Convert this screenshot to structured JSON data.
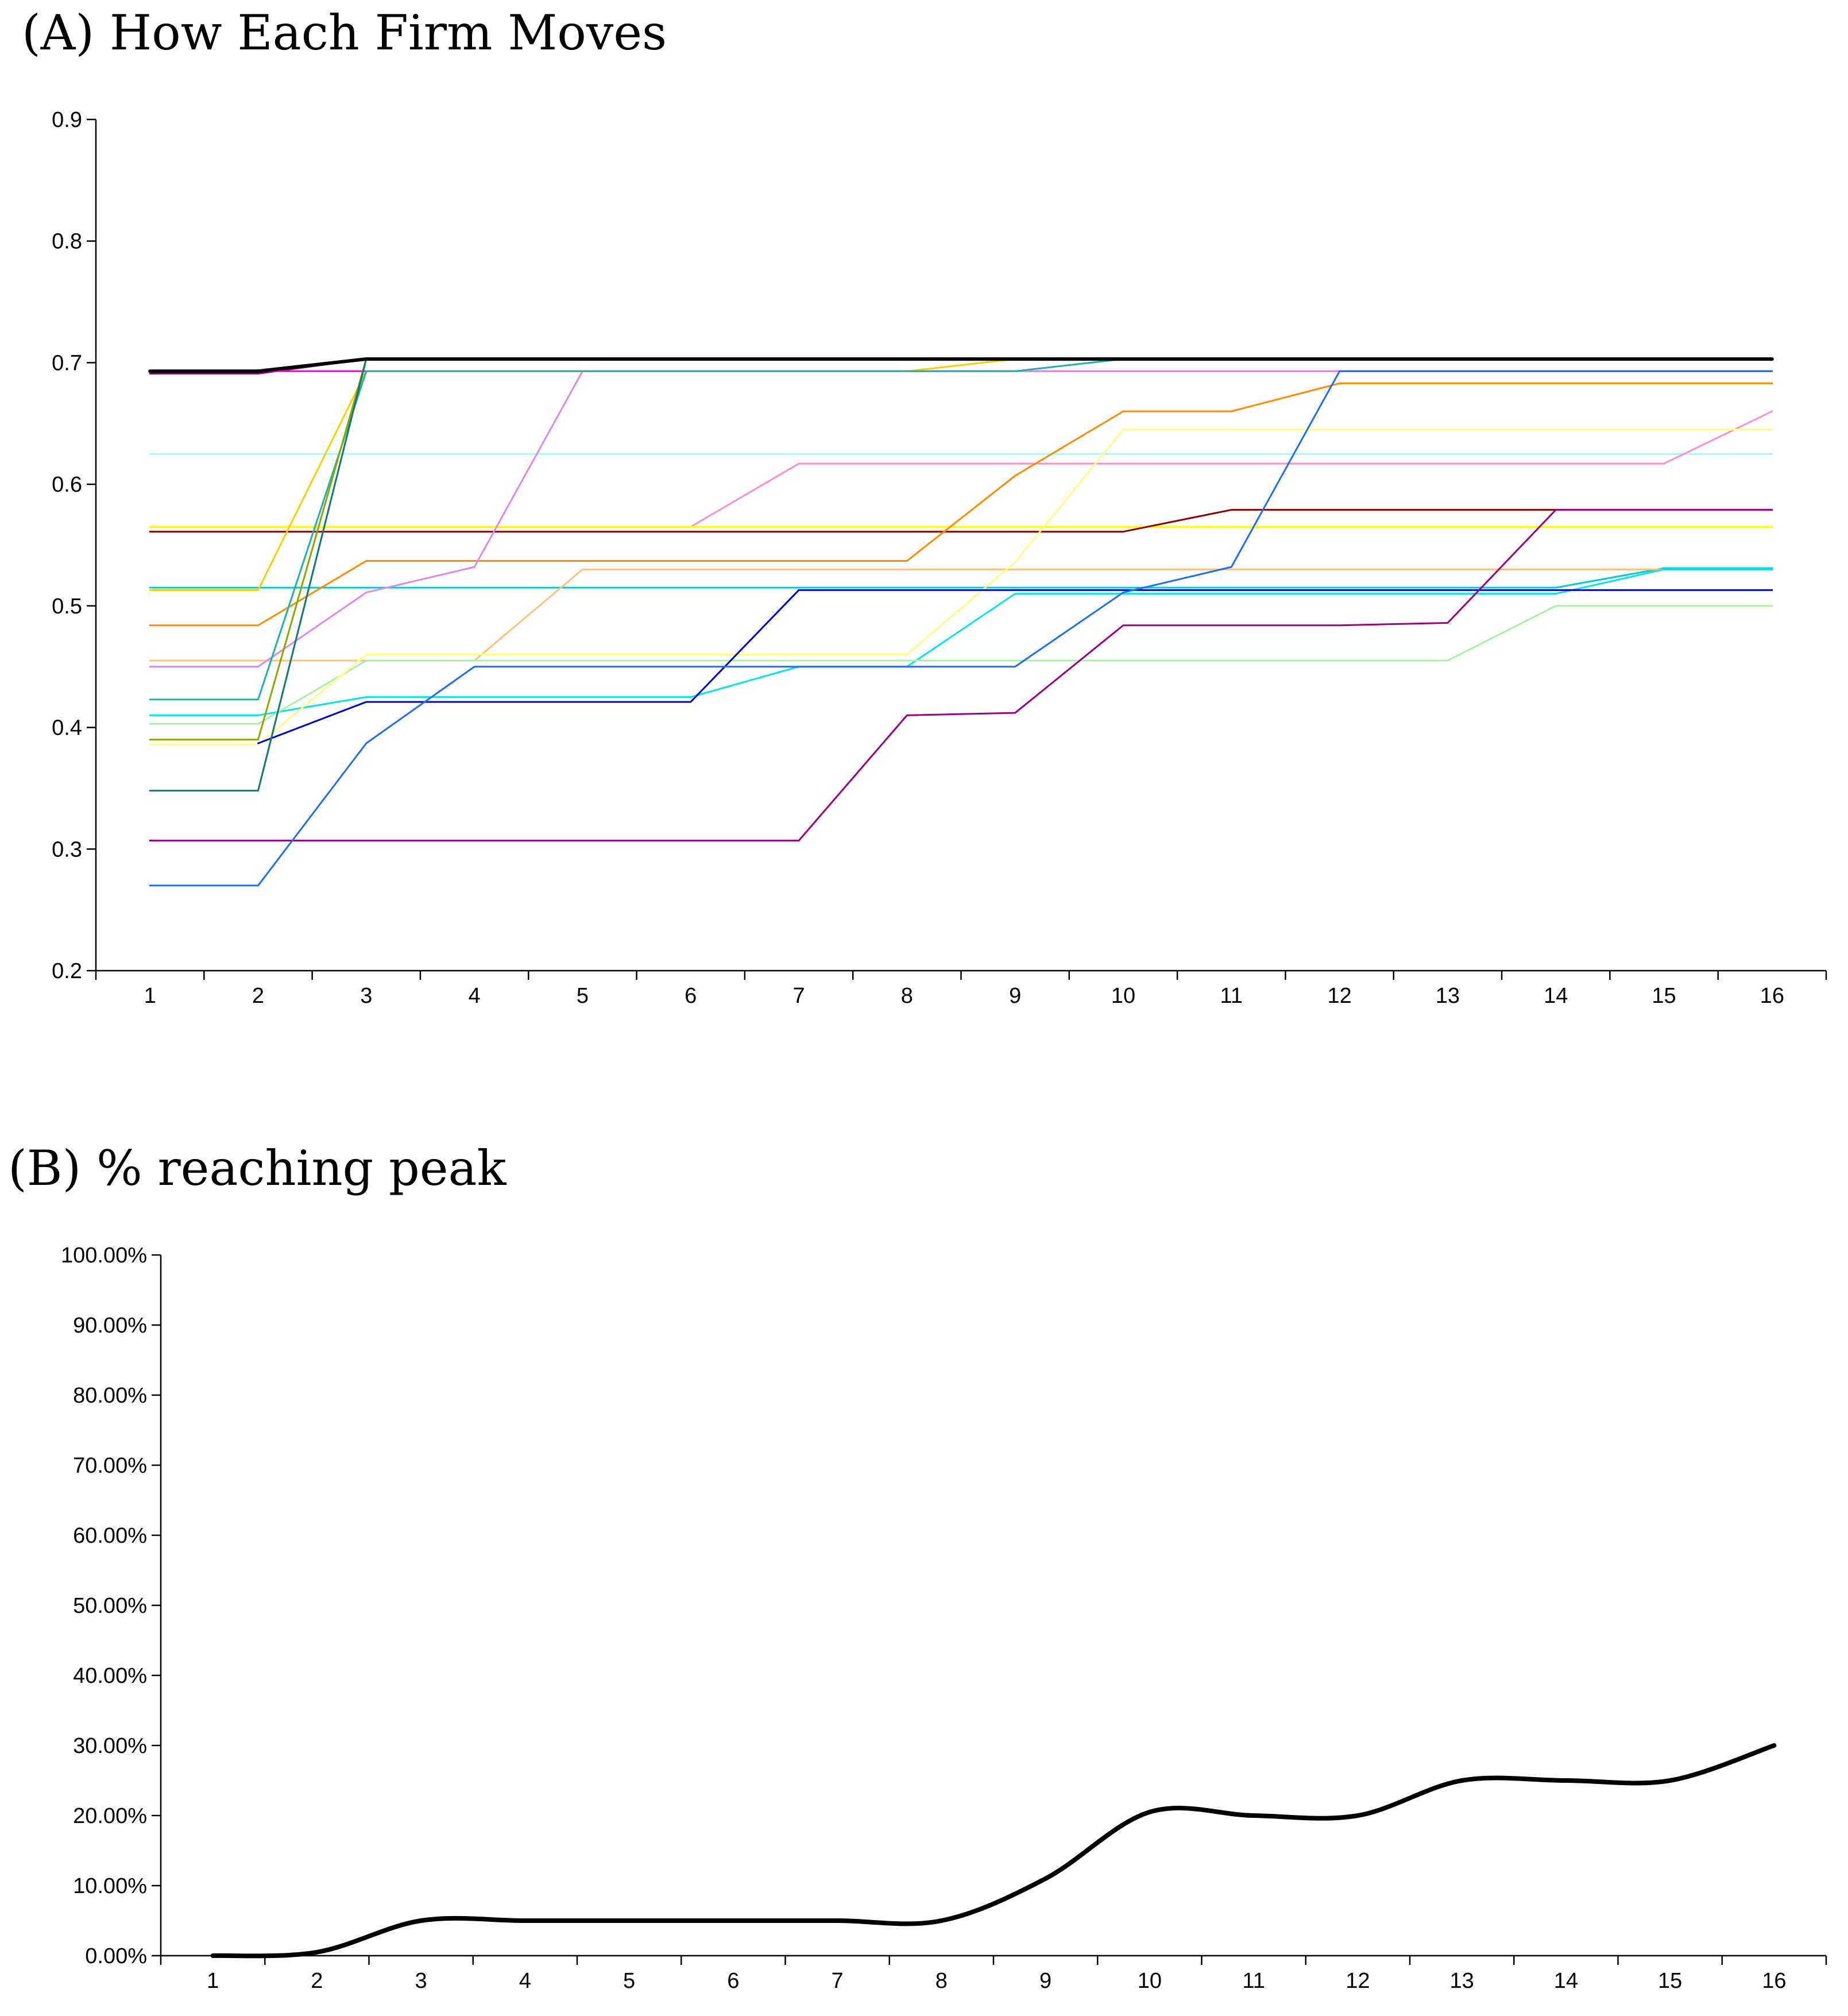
{
  "titles": {
    "a": "(A) How Each Firm Moves",
    "b": "(B) % reaching peak"
  },
  "chart_data": [
    {
      "type": "line",
      "title": "(A) How Each Firm Moves",
      "xlabel": "",
      "ylabel": "",
      "categories": [
        "1",
        "2",
        "3",
        "4",
        "5",
        "6",
        "7",
        "8",
        "9",
        "10",
        "11",
        "12",
        "13",
        "14",
        "15",
        "16"
      ],
      "y_ticks": [
        "0.2",
        "0.3",
        "0.4",
        "0.5",
        "0.6",
        "0.7",
        "0.8",
        "0.9"
      ],
      "ylim": [
        0.2,
        0.9
      ],
      "legend": "none",
      "series": [
        {
          "name": "black (thick)",
          "color": "#000000",
          "width": 6,
          "values": [
            0.693,
            0.693,
            0.703,
            0.703,
            0.703,
            0.703,
            0.703,
            0.703,
            0.703,
            0.703,
            0.703,
            0.703,
            0.703,
            0.703,
            0.703,
            0.703
          ]
        },
        {
          "name": "purple",
          "color": "#8B008B",
          "width": 3,
          "values": [
            0.691,
            0.691,
            0.703,
            0.703,
            0.703,
            0.703,
            0.703,
            0.703,
            0.703,
            0.703,
            0.703,
            0.703,
            0.703,
            0.703,
            0.703,
            0.703
          ]
        },
        {
          "name": "magenta",
          "color": "#FF00CC",
          "width": 3,
          "values": [
            0.693,
            0.693,
            0.693,
            0.693,
            0.693,
            0.693,
            0.693,
            0.693,
            0.693,
            0.693,
            0.693,
            0.693,
            0.693,
            0.693,
            0.693,
            0.693
          ]
        },
        {
          "name": "light cyan",
          "color": "#99FFFF",
          "width": 3,
          "values": [
            0.625,
            0.625,
            0.625,
            0.625,
            0.625,
            0.625,
            0.625,
            0.625,
            0.625,
            0.625,
            0.625,
            0.625,
            0.625,
            0.625,
            0.625,
            0.625
          ]
        },
        {
          "name": "pink",
          "color": "#FF8FC8",
          "width": 3,
          "values": [
            0.565,
            0.565,
            0.565,
            0.565,
            0.565,
            0.565,
            0.617,
            0.617,
            0.617,
            0.617,
            0.617,
            0.617,
            0.617,
            0.617,
            0.617,
            0.66
          ]
        },
        {
          "name": "yellow",
          "color": "#FFFF00",
          "width": 3,
          "values": [
            0.565,
            0.565,
            0.565,
            0.565,
            0.565,
            0.565,
            0.565,
            0.565,
            0.565,
            0.565,
            0.565,
            0.565,
            0.565,
            0.565,
            0.565,
            0.565
          ]
        },
        {
          "name": "dark red",
          "color": "#8B0000",
          "width": 3,
          "values": [
            0.561,
            0.561,
            0.561,
            0.561,
            0.561,
            0.561,
            0.561,
            0.561,
            0.561,
            0.561,
            0.579,
            0.579,
            0.579,
            0.579,
            0.579,
            0.579
          ]
        },
        {
          "name": "cyan teal",
          "color": "#00CCCC",
          "width": 3,
          "values": [
            0.515,
            0.515,
            0.515,
            0.515,
            0.515,
            0.515,
            0.515,
            0.515,
            0.515,
            0.515,
            0.515,
            0.515,
            0.515,
            0.515,
            0.531,
            0.531
          ]
        },
        {
          "name": "gold",
          "color": "#FFCC00",
          "width": 3,
          "values": [
            0.513,
            0.513,
            0.693,
            0.693,
            0.693,
            0.693,
            0.693,
            0.693,
            0.703,
            0.703,
            0.703,
            0.703,
            0.703,
            0.703,
            0.703,
            0.703
          ]
        },
        {
          "name": "orange",
          "color": "#FF8C00",
          "width": 3,
          "values": [
            0.484,
            0.484,
            0.537,
            0.537,
            0.537,
            0.537,
            0.537,
            0.537,
            0.607,
            0.66,
            0.66,
            0.683,
            0.683,
            0.683,
            0.683,
            0.683
          ]
        },
        {
          "name": "light orange",
          "color": "#FFC080",
          "width": 3,
          "values": [
            0.455,
            0.455,
            0.455,
            0.455,
            0.53,
            0.53,
            0.53,
            0.53,
            0.53,
            0.53,
            0.53,
            0.53,
            0.53,
            0.53,
            0.53,
            0.53
          ]
        },
        {
          "name": "violet",
          "color": "#DD88EE",
          "width": 3,
          "values": [
            0.45,
            0.45,
            0.511,
            0.532,
            0.693,
            0.693,
            0.693,
            0.693,
            0.693,
            0.693,
            0.693,
            0.693,
            0.693,
            0.693,
            0.693,
            0.693
          ]
        },
        {
          "name": "teal",
          "color": "#20B2AA",
          "width": 3,
          "values": [
            0.423,
            0.423,
            0.693,
            0.693,
            0.693,
            0.693,
            0.693,
            0.693,
            0.693,
            0.703,
            0.703,
            0.703,
            0.703,
            0.703,
            0.703,
            0.703
          ]
        },
        {
          "name": "aqua",
          "color": "#00E5EE",
          "width": 3,
          "values": [
            0.41,
            0.41,
            0.425,
            0.425,
            0.425,
            0.425,
            0.45,
            0.45,
            0.51,
            0.51,
            0.51,
            0.51,
            0.51,
            0.51,
            0.53,
            0.53
          ]
        },
        {
          "name": "pale green",
          "color": "#A8F0A8",
          "width": 3,
          "values": [
            0.403,
            0.403,
            0.455,
            0.455,
            0.455,
            0.455,
            0.455,
            0.455,
            0.455,
            0.455,
            0.455,
            0.455,
            0.455,
            0.5,
            0.5,
            0.5
          ]
        },
        {
          "name": "olive green",
          "color": "#88AA00",
          "width": 3,
          "values": [
            0.39,
            0.39,
            0.703,
            0.703,
            0.703,
            0.703,
            0.703,
            0.703,
            0.703,
            0.703,
            0.703,
            0.703,
            0.703,
            0.703,
            0.703,
            0.703
          ]
        },
        {
          "name": "light yellow",
          "color": "#FFFF88",
          "width": 3,
          "values": [
            0.386,
            0.386,
            0.46,
            0.46,
            0.46,
            0.46,
            0.46,
            0.46,
            0.536,
            0.645,
            0.645,
            0.645,
            0.645,
            0.645,
            0.645,
            0.645
          ]
        },
        {
          "name": "navy",
          "color": "#0000CC",
          "width": 3,
          "values": [
            null,
            0.387,
            0.421,
            0.421,
            0.421,
            0.421,
            0.513,
            0.513,
            0.513,
            0.513,
            0.513,
            0.513,
            0.513,
            0.513,
            0.513,
            0.513
          ]
        },
        {
          "name": "dark teal",
          "color": "#0E7A6E",
          "width": 3,
          "values": [
            0.348,
            0.348,
            0.703,
            0.703,
            0.703,
            0.703,
            0.703,
            0.703,
            0.703,
            0.703,
            0.703,
            0.703,
            0.703,
            0.703,
            0.703,
            0.703
          ]
        },
        {
          "name": "dark magenta",
          "color": "#990088",
          "width": 3,
          "values": [
            0.307,
            0.307,
            0.307,
            0.307,
            0.307,
            0.307,
            0.307,
            0.41,
            0.412,
            0.484,
            0.484,
            0.484,
            0.486,
            0.579,
            0.579,
            0.579
          ]
        },
        {
          "name": "blue",
          "color": "#1E6FE8",
          "width": 3,
          "values": [
            0.27,
            0.27,
            0.387,
            0.45,
            0.45,
            0.45,
            0.45,
            0.45,
            0.45,
            0.511,
            0.532,
            0.693,
            0.693,
            0.693,
            0.693,
            0.693
          ]
        }
      ]
    },
    {
      "type": "line",
      "title": "(B) % reaching peak",
      "xlabel": "",
      "ylabel": "",
      "categories": [
        "1",
        "2",
        "3",
        "4",
        "5",
        "6",
        "7",
        "8",
        "9",
        "10",
        "11",
        "12",
        "13",
        "14",
        "15",
        "16"
      ],
      "y_ticks": [
        "0.00%",
        "10.00%",
        "20.00%",
        "30.00%",
        "40.00%",
        "50.00%",
        "60.00%",
        "70.00%",
        "80.00%",
        "90.00%",
        "100.00%"
      ],
      "ylim": [
        0,
        100
      ],
      "legend": "none",
      "series": [
        {
          "name": "% reaching peak",
          "color": "#000000",
          "width": 8,
          "values": [
            0,
            0.5,
            5,
            5,
            5,
            5,
            5,
            5,
            11,
            20.5,
            20,
            20,
            25,
            25,
            25,
            30
          ]
        }
      ]
    }
  ]
}
